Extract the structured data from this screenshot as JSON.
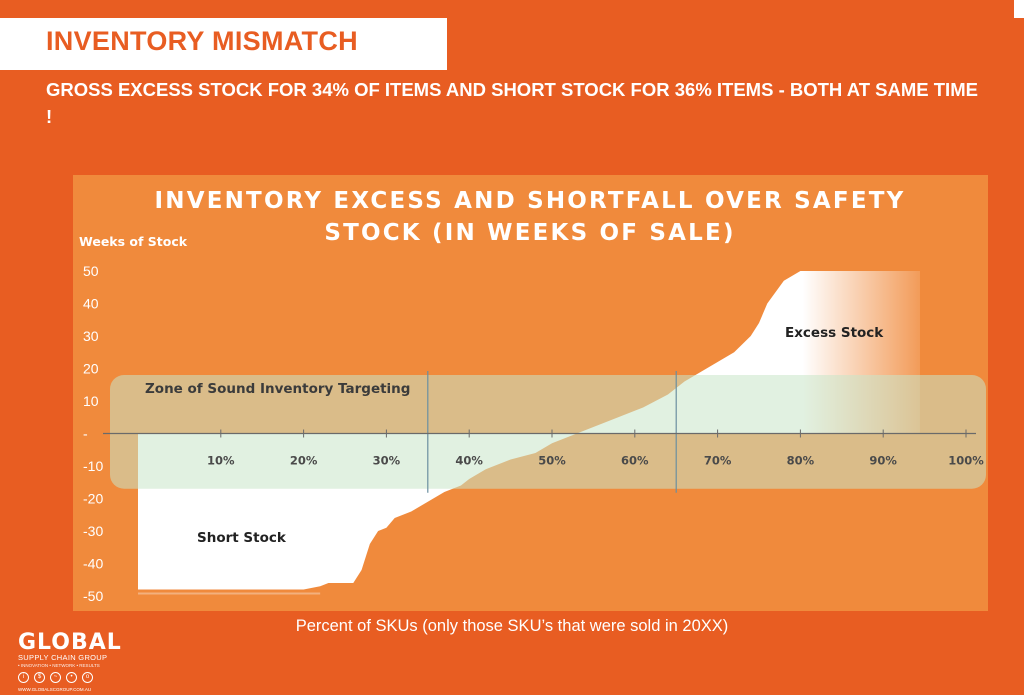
{
  "slide": {
    "title": "INVENTORY MISMATCH",
    "subtitle": "GROSS EXCESS STOCK FOR 34%  OF ITEMS AND SHORT STOCK FOR 36% ITEMS - BOTH AT SAME TIME !",
    "x_caption": "Percent of SKUs (only those SKU’s that were sold in 20XX)"
  },
  "logo": {
    "name": "GLOBAL",
    "tagline": "SUPPLY CHAIN GROUP",
    "tags": "• INNOVATION • NETWORK • RESULTS",
    "url": "WWW.GLOBALSCGROUP.COM.AU"
  },
  "colors": {
    "background": "#e85d22",
    "chart_panel": "#f08a3c",
    "zone_band": "#c9e6c8",
    "curve_fill": "#ffffff",
    "title_text": "#e85d22"
  },
  "chart_data": {
    "type": "area",
    "title": "INVENTORY EXCESS AND SHORTFALL OVER SAFETY STOCK (IN WEEKS OF SALE)",
    "ylabel": "Weeks of Stock",
    "xlabel": "",
    "xlim": [
      0,
      100
    ],
    "ylim": [
      -50,
      50
    ],
    "y_ticks": [
      "50",
      "40",
      "30",
      "20",
      "10",
      "-",
      "-10",
      "-20",
      "-30",
      "-40",
      "-50"
    ],
    "x_ticks": [
      "10%",
      "20%",
      "30%",
      "40%",
      "50%",
      "60%",
      "70%",
      "80%",
      "90%",
      "100%"
    ],
    "grid": false,
    "series": [
      {
        "x": [
          0,
          10,
          20,
          22,
          23,
          26,
          27,
          28,
          29,
          30,
          31,
          33,
          35,
          37,
          39,
          40,
          42,
          45,
          48,
          50,
          52,
          55,
          58,
          61,
          64,
          66,
          68,
          70,
          72,
          74,
          75,
          76,
          78,
          80
        ],
        "y": [
          -48,
          -48,
          -48,
          -47,
          -46,
          -46,
          -42,
          -34,
          -30,
          -29,
          -26,
          -24,
          -21,
          -18,
          -16,
          -14,
          -11,
          -8,
          -6,
          -3,
          -1,
          2,
          5,
          8,
          12,
          16,
          19,
          22,
          25,
          30,
          34,
          40,
          47,
          50
        ]
      }
    ],
    "zone": {
      "label": "Zone of Sound Inventory Targeting",
      "y_range": [
        -17,
        18
      ],
      "x_markers": [
        35,
        65
      ]
    },
    "annotations": [
      "Excess Stock",
      "Short Stock"
    ]
  }
}
